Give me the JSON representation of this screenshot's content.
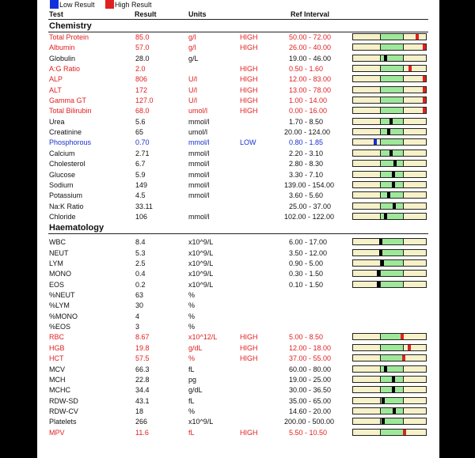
{
  "legend": {
    "low_label": "Low Result",
    "high_label": "High Result",
    "low_color": "#1030e0",
    "high_color": "#e02020"
  },
  "columns": {
    "test": "Test",
    "result": "Result",
    "units": "Units",
    "ref_interval": "Ref Interval"
  },
  "colors": {
    "normal_text": "#111111",
    "high_text": "#e02020",
    "low_text": "#1a2fd0",
    "bar_background": "#f6f1c8",
    "bar_normal_range": "#9ee89a",
    "marker_normal": "#000000",
    "marker_high": "#e02020",
    "marker_low": "#1030e0"
  },
  "sections": [
    {
      "title": "Chemistry",
      "rows": [
        {
          "test": "Total Protein",
          "result": "85.0",
          "units": "g/l",
          "flag": "HIGH",
          "ref": "50.00 - 72.00",
          "level": 0.9
        },
        {
          "test": "Albumin",
          "result": "57.0",
          "units": "g/l",
          "flag": "HIGH",
          "ref": "26.00 - 40.00",
          "level": 1.0
        },
        {
          "test": "Globulin",
          "result": "28.0",
          "units": "g/L",
          "flag": "",
          "ref": "19.00 - 46.00",
          "level": 0.44
        },
        {
          "test": "A:G Ratio",
          "result": "2.0",
          "units": "",
          "flag": "HIGH",
          "ref": "0.50 - 1.60",
          "level": 0.8
        },
        {
          "test": "ALP",
          "result": "806",
          "units": "U/l",
          "flag": "HIGH",
          "ref": "12.00 - 83.00",
          "level": 1.0
        },
        {
          "test": "ALT",
          "result": "172",
          "units": "U/l",
          "flag": "HIGH",
          "ref": "13.00 - 78.00",
          "level": 1.0
        },
        {
          "test": "Gamma GT",
          "result": "127.0",
          "units": "U/l",
          "flag": "HIGH",
          "ref": "1.00 - 14.00",
          "level": 1.0
        },
        {
          "test": "Total Bilirubin",
          "result": "68.0",
          "units": "umol/l",
          "flag": "HIGH",
          "ref": "0.00 - 16.00",
          "level": 1.0
        },
        {
          "test": "Urea",
          "result": "5.6",
          "units": "mmol/l",
          "flag": "",
          "ref": "1.70 - 8.50",
          "level": 0.52
        },
        {
          "test": "Creatinine",
          "result": "65",
          "units": "umol/l",
          "flag": "",
          "ref": "20.00 - 124.00",
          "level": 0.49
        },
        {
          "test": "Phosphorous",
          "result": "0.70",
          "units": "mmol/l",
          "flag": "LOW",
          "ref": "0.80 - 1.85",
          "level": 0.3
        },
        {
          "test": "Calcium",
          "result": "2.71",
          "units": "mmol/l",
          "flag": "",
          "ref": "2.20 - 3.10",
          "level": 0.52
        },
        {
          "test": "Cholesterol",
          "result": "6.7",
          "units": "mmol/l",
          "flag": "",
          "ref": "2.80 - 8.30",
          "level": 0.58
        },
        {
          "test": "Glucose",
          "result": "5.9",
          "units": "mmol/l",
          "flag": "",
          "ref": "3.30 - 7.10",
          "level": 0.56
        },
        {
          "test": "Sodium",
          "result": "149",
          "units": "mmol/l",
          "flag": "",
          "ref": "139.00 - 154.00",
          "level": 0.56
        },
        {
          "test": "Potassium",
          "result": "4.5",
          "units": "mmol/l",
          "flag": "",
          "ref": "3.60 - 5.60",
          "level": 0.49
        },
        {
          "test": "Na:K Ratio",
          "result": "33.11",
          "units": "",
          "flag": "",
          "ref": "25.00 - 37.00",
          "level": 0.57
        },
        {
          "test": "Chloride",
          "result": "106",
          "units": "mmol/l",
          "flag": "",
          "ref": "102.00 - 122.00",
          "level": 0.44
        }
      ]
    },
    {
      "title": "Haematology",
      "rows": [
        {
          "test": "WBC",
          "result": "8.4",
          "units": "x10^9/L",
          "flag": "",
          "ref": "6.00 - 17.00",
          "level": 0.37
        },
        {
          "test": "NEUT",
          "result": "5.3",
          "units": "x10^9/L",
          "flag": "",
          "ref": "3.50 - 12.00",
          "level": 0.37
        },
        {
          "test": "LYM",
          "result": "2.5",
          "units": "x10^9/L",
          "flag": "",
          "ref": "0.90 - 5.00",
          "level": 0.4
        },
        {
          "test": "MONO",
          "result": "0.4",
          "units": "x10^9/L",
          "flag": "",
          "ref": "0.30 - 1.50",
          "level": 0.34
        },
        {
          "test": "EOS",
          "result": "0.2",
          "units": "x10^9/L",
          "flag": "",
          "ref": "0.10 - 1.50",
          "level": 0.34
        },
        {
          "test": "%NEUT",
          "result": "63",
          "units": "%",
          "flag": "",
          "ref": "",
          "level": null
        },
        {
          "test": "%LYM",
          "result": "30",
          "units": "%",
          "flag": "",
          "ref": "",
          "level": null
        },
        {
          "test": "%MONO",
          "result": "4",
          "units": "%",
          "flag": "",
          "ref": "",
          "level": null
        },
        {
          "test": "%EOS",
          "result": "3",
          "units": "%",
          "flag": "",
          "ref": "",
          "level": null
        },
        {
          "test": "RBC",
          "result": "8.67",
          "units": "x10^12/L",
          "flag": "HIGH",
          "ref": "5.00 - 8.50",
          "level": 0.68
        },
        {
          "test": "HGB",
          "result": "19.8",
          "units": "g/dL",
          "flag": "HIGH",
          "ref": "12.00 - 18.00",
          "level": 0.78
        },
        {
          "test": "HCT",
          "result": "57.5",
          "units": "%",
          "flag": "HIGH",
          "ref": "37.00 - 55.00",
          "level": 0.7
        },
        {
          "test": "MCV",
          "result": "66.3",
          "units": "fL",
          "flag": "",
          "ref": "60.00 - 80.00",
          "level": 0.44
        },
        {
          "test": "MCH",
          "result": "22.8",
          "units": "pg",
          "flag": "",
          "ref": "19.00 - 25.00",
          "level": 0.56
        },
        {
          "test": "MCHC",
          "result": "34.4",
          "units": "g/dL",
          "flag": "",
          "ref": "30.00 - 36.50",
          "level": 0.56
        },
        {
          "test": "RDW-SD",
          "result": "43.1",
          "units": "fL",
          "flag": "",
          "ref": "35.00 - 65.00",
          "level": 0.41
        },
        {
          "test": "RDW-CV",
          "result": "18",
          "units": "%",
          "flag": "",
          "ref": "14.60 - 20.00",
          "level": 0.57
        },
        {
          "test": "Platelets",
          "result": "266",
          "units": "x10^9/L",
          "flag": "",
          "ref": "200.00 - 500.00",
          "level": 0.41
        },
        {
          "test": "MPV",
          "result": "11.6",
          "units": "fL",
          "flag": "HIGH",
          "ref": "5.50 - 10.50",
          "level": 0.72
        }
      ]
    }
  ]
}
